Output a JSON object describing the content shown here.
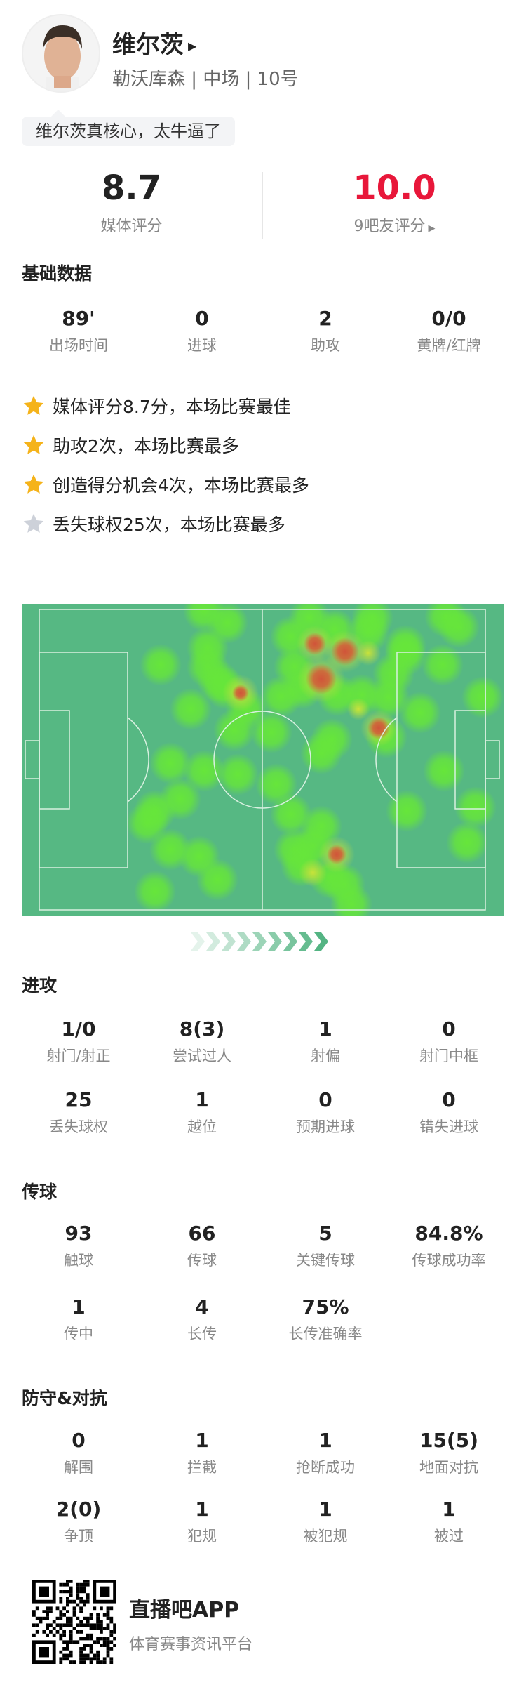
{
  "player": {
    "name": "维尔茨",
    "team": "勒沃库森",
    "position": "中场",
    "number": "10号",
    "comment": "维尔茨真核心，太牛逼了"
  },
  "ratings": {
    "media_value": "8.7",
    "media_label": "媒体评分",
    "fan_value": "10.0",
    "fan_label": "9吧友评分",
    "fan_color": "#e8173a"
  },
  "basic": {
    "title": "基础数据",
    "stats": [
      {
        "v": "89'",
        "l": "出场时间"
      },
      {
        "v": "0",
        "l": "进球"
      },
      {
        "v": "2",
        "l": "助攻"
      },
      {
        "v": "0/0",
        "l": "黄牌/红牌"
      }
    ]
  },
  "highlights": [
    {
      "text": "媒体评分8.7分，本场比赛最佳",
      "icon": "star-gold-icon"
    },
    {
      "text": "助攻2次，本场比赛最多",
      "icon": "star-gold-icon"
    },
    {
      "text": "创造得分机会4次，本场比赛最多",
      "icon": "star-gold-icon"
    },
    {
      "text": "丢失球权25次，本场比赛最多",
      "icon": "star-gray-icon"
    }
  ],
  "colors": {
    "star_gold": "#f5b31a",
    "star_gray": "#cdd1d9",
    "pitch": "#56b883"
  },
  "attack": {
    "title": "进攻",
    "rows": [
      [
        {
          "v": "1/0",
          "l": "射门/射正"
        },
        {
          "v": "8(3)",
          "l": "尝试过人"
        },
        {
          "v": "1",
          "l": "射偏"
        },
        {
          "v": "0",
          "l": "射门中框"
        }
      ],
      [
        {
          "v": "25",
          "l": "丢失球权"
        },
        {
          "v": "1",
          "l": "越位"
        },
        {
          "v": "0",
          "l": "预期进球"
        },
        {
          "v": "0",
          "l": "错失进球"
        }
      ]
    ]
  },
  "passing": {
    "title": "传球",
    "rows": [
      [
        {
          "v": "93",
          "l": "触球"
        },
        {
          "v": "66",
          "l": "传球"
        },
        {
          "v": "5",
          "l": "关键传球"
        },
        {
          "v": "84.8%",
          "l": "传球成功率"
        }
      ],
      [
        {
          "v": "1",
          "l": "传中"
        },
        {
          "v": "4",
          "l": "长传"
        },
        {
          "v": "75%",
          "l": "长传准确率"
        }
      ]
    ]
  },
  "defense": {
    "title": "防守&对抗",
    "rows": [
      [
        {
          "v": "0",
          "l": "解围"
        },
        {
          "v": "1",
          "l": "拦截"
        },
        {
          "v": "1",
          "l": "抢断成功"
        },
        {
          "v": "15(5)",
          "l": "地面对抗"
        }
      ],
      [
        {
          "v": "2(0)",
          "l": "争顶"
        },
        {
          "v": "1",
          "l": "犯规"
        },
        {
          "v": "1",
          "l": "被犯规"
        },
        {
          "v": "1",
          "l": "被过"
        }
      ]
    ]
  },
  "footer": {
    "app_name": "直播吧APP",
    "slogan": "体育赛事资讯平台"
  }
}
